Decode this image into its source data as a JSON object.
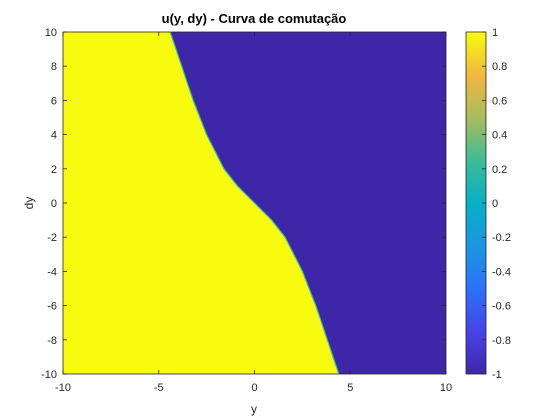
{
  "chart_data": {
    "type": "heatmap",
    "title": "u(y, dy) - Curva de comutação",
    "xlabel": "y",
    "ylabel": "dy",
    "xlim": [
      -10,
      10
    ],
    "ylim": [
      -10,
      10
    ],
    "xticks": [
      -10,
      -5,
      0,
      5,
      10
    ],
    "yticks": [
      -10,
      -8,
      -6,
      -4,
      -2,
      0,
      2,
      4,
      6,
      8,
      10
    ],
    "colorbar": {
      "range": [
        -1,
        1
      ],
      "ticks": [
        -1,
        -0.8,
        -0.6,
        -0.4,
        -0.2,
        0,
        0.2,
        0.4,
        0.6,
        0.8,
        1
      ],
      "colormap": "parula",
      "placement": "right"
    },
    "regions": [
      {
        "value": 1,
        "color": "#f9fb0e",
        "where": "left of / below the switching curve"
      },
      {
        "value": -1,
        "color": "#3e26a8",
        "where": "right of / above the switching curve"
      }
    ],
    "switching_curve": {
      "description": "boundary between u = 1 and u = -1 regions",
      "points": [
        {
          "dy": 10,
          "y": -4.4
        },
        {
          "dy": 8,
          "y": -3.8
        },
        {
          "dy": 6,
          "y": -3.2
        },
        {
          "dy": 4,
          "y": -2.5
        },
        {
          "dy": 2,
          "y": -1.6
        },
        {
          "dy": 1,
          "y": -0.9
        },
        {
          "dy": 0,
          "y": 0.0
        },
        {
          "dy": -1,
          "y": 0.9
        },
        {
          "dy": -2,
          "y": 1.6
        },
        {
          "dy": -4,
          "y": 2.5
        },
        {
          "dy": -6,
          "y": 3.2
        },
        {
          "dy": -8,
          "y": 3.8
        },
        {
          "dy": -10,
          "y": 4.4
        }
      ]
    },
    "grid": false
  }
}
